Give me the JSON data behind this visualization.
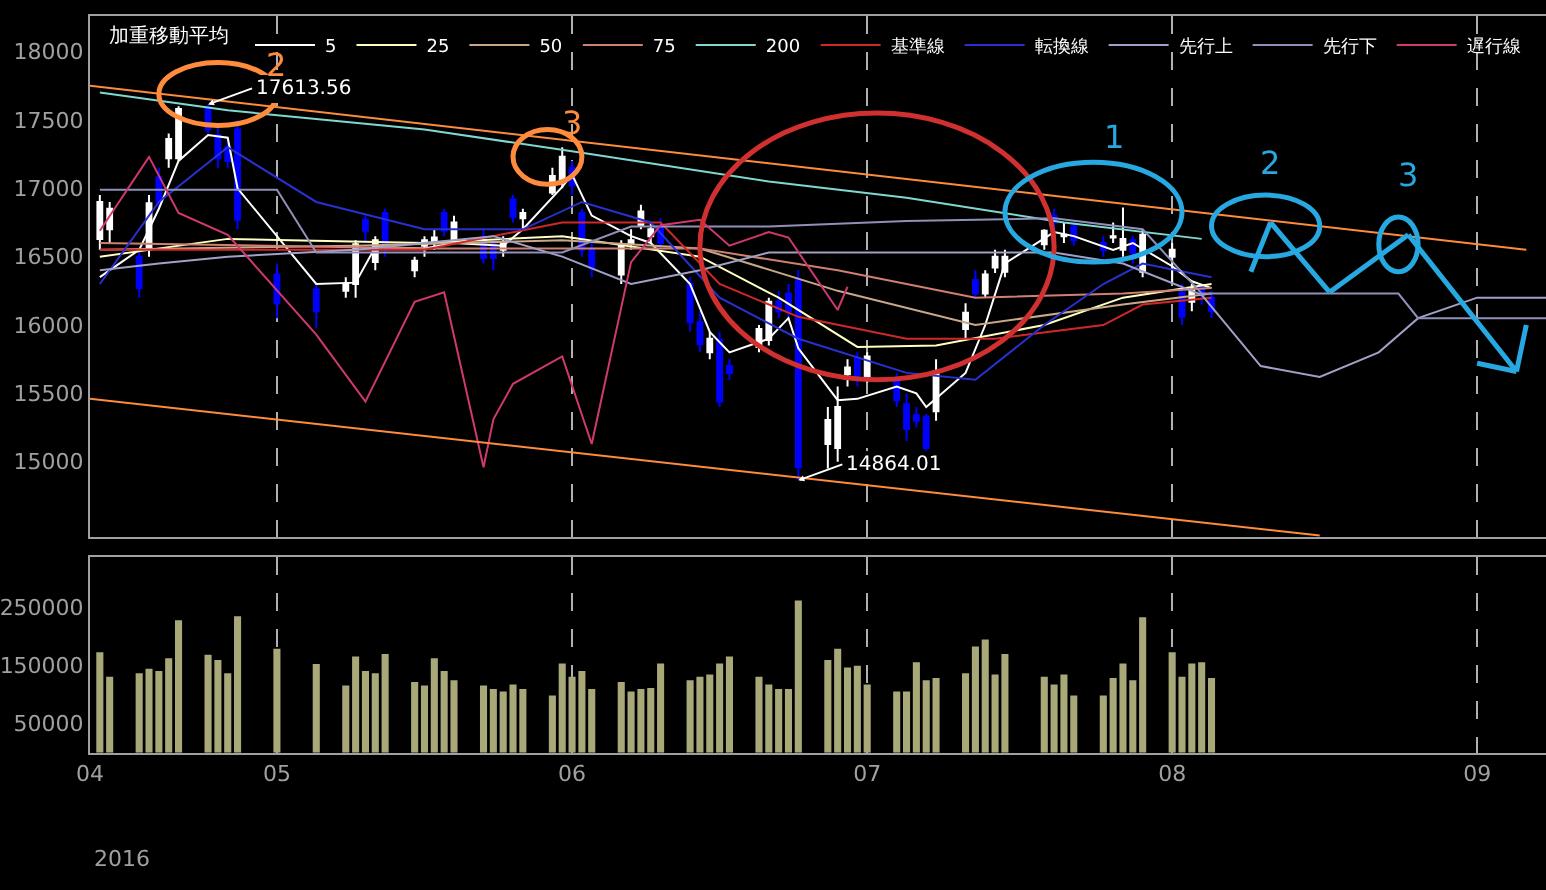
{
  "chart_data": [
    {
      "type": "candlestick",
      "legend_title": "加重移動平均",
      "legend": "top",
      "grid": "x",
      "tick_labels": "y",
      "xlim": [
        "2016-04-13",
        "2016-09-08"
      ],
      "xticks": [
        {
          "value": "2016-04-13",
          "label": null
        },
        {
          "value": "2016-05-02",
          "label": null
        },
        {
          "value": "2016-06-01",
          "label": null
        },
        {
          "value": "2016-07-01",
          "label": null
        },
        {
          "value": "2016-08-01",
          "label": null
        },
        {
          "value": "2016-09-01",
          "label": null
        }
      ],
      "ylim": [
        14450,
        18260
      ],
      "yticks": [
        15000,
        15500,
        16000,
        16500,
        17000,
        17500,
        18000
      ],
      "series": [
        {
          "type": "candlestick",
          "color": "#ffffff",
          "x": [
            "2016-04-14",
            "2016-04-15",
            "2016-04-19",
            "2016-04-21",
            "2016-04-22",
            "2016-05-09",
            "2016-05-10",
            "2016-05-12",
            "2016-05-16",
            "2016-05-17",
            "2016-05-18",
            "2016-05-20",
            "2016-05-25",
            "2016-05-27",
            "2016-05-30",
            "2016-05-31",
            "2016-06-06",
            "2016-06-07",
            "2016-06-08",
            "2016-06-09",
            "2016-06-15",
            "2016-06-20",
            "2016-06-21",
            "2016-06-27",
            "2016-06-28",
            "2016-06-29",
            "2016-07-01",
            "2016-07-08",
            "2016-07-11",
            "2016-07-13",
            "2016-07-14",
            "2016-07-15",
            "2016-07-19",
            "2016-07-21",
            "2016-07-26",
            "2016-07-27",
            "2016-07-29",
            "2016-08-01",
            "2016-08-03"
          ],
          "ohlc": [
            [
              16630,
              16950,
              16550,
              16900
            ],
            [
              16700,
              16900,
              16600,
              16850
            ],
            [
              16570,
              16950,
              16500,
              16890
            ],
            [
              17220,
              17400,
              17150,
              17360
            ],
            [
              17220,
              17600,
              17200,
              17580
            ],
            [
              16250,
              16350,
              16200,
              16300
            ],
            [
              16300,
              16620,
              16200,
              16590
            ],
            [
              16460,
              16650,
              16400,
              16620
            ],
            [
              16400,
              16500,
              16350,
              16470
            ],
            [
              16580,
              16650,
              16500,
              16620
            ],
            [
              16600,
              16700,
              16550,
              16640
            ],
            [
              16630,
              16800,
              16600,
              16750
            ],
            [
              16550,
              16650,
              16500,
              16600
            ],
            [
              16780,
              16850,
              16700,
              16820
            ],
            [
              16970,
              17150,
              16950,
              17090
            ],
            [
              17060,
              17300,
              17000,
              17230
            ],
            [
              16370,
              16620,
              16300,
              16590
            ],
            [
              16600,
              16700,
              16550,
              16620
            ],
            [
              16730,
              16880,
              16700,
              16830
            ],
            [
              16650,
              16750,
              16600,
              16700
            ],
            [
              15800,
              15950,
              15750,
              15900
            ],
            [
              15840,
              16000,
              15800,
              15970
            ],
            [
              15890,
              16200,
              15850,
              16170
            ],
            [
              15130,
              15400,
              14950,
              15305
            ],
            [
              15100,
              15550,
              15000,
              15400
            ],
            [
              15640,
              15750,
              15550,
              15690
            ],
            [
              15620,
              15800,
              15580,
              15770
            ],
            [
              15370,
              15750,
              15300,
              15660
            ],
            [
              15970,
              16160,
              15900,
              16090
            ],
            [
              16230,
              16400,
              16200,
              16370
            ],
            [
              16420,
              16550,
              16380,
              16500
            ],
            [
              16390,
              16550,
              16350,
              16500
            ],
            [
              16590,
              16700,
              16550,
              16690
            ],
            [
              16650,
              16750,
              16600,
              16660
            ],
            [
              16640,
              16750,
              16600,
              16650
            ],
            [
              16550,
              16860,
              16500,
              16630
            ],
            [
              16390,
              16700,
              16350,
              16660
            ],
            [
              16500,
              16600,
              16300,
              16550
            ],
            [
              16170,
              16300,
              16100,
              16260
            ]
          ]
        },
        {
          "type": "candlestick",
          "color": "#0000ff",
          "x": [
            "2016-04-18",
            "2016-04-20",
            "2016-04-25",
            "2016-04-26",
            "2016-04-27",
            "2016-04-28",
            "2016-05-02",
            "2016-05-06",
            "2016-05-11",
            "2016-05-13",
            "2016-05-19",
            "2016-05-23",
            "2016-05-24",
            "2016-05-26",
            "2016-06-01",
            "2016-06-02",
            "2016-06-03",
            "2016-06-10",
            "2016-06-13",
            "2016-06-14",
            "2016-06-16",
            "2016-06-17",
            "2016-06-22",
            "2016-06-23",
            "2016-06-24",
            "2016-06-30",
            "2016-07-04",
            "2016-07-05",
            "2016-07-06",
            "2016-07-07",
            "2016-07-12",
            "2016-07-20",
            "2016-07-22",
            "2016-07-25",
            "2016-07-28",
            "2016-08-02",
            "2016-08-04",
            "2016-08-05"
          ],
          "ohlc": [
            [
              16500,
              16550,
              16200,
              16270
            ],
            [
              17080,
              17150,
              16850,
              16900
            ],
            [
              17590,
              17613.56,
              17400,
              17430
            ],
            [
              17390,
              17450,
              17150,
              17220
            ],
            [
              17300,
              17350,
              17150,
              17200
            ],
            [
              17430,
              17500,
              16700,
              16770
            ],
            [
              16370,
              16450,
              16050,
              16160
            ],
            [
              16260,
              16300,
              15980,
              16100
            ],
            [
              16770,
              16800,
              16600,
              16690
            ],
            [
              16820,
              16850,
              16500,
              16550
            ],
            [
              16820,
              16850,
              16650,
              16690
            ],
            [
              16640,
              16700,
              16450,
              16490
            ],
            [
              16590,
              16620,
              16400,
              16490
            ],
            [
              16920,
              16950,
              16750,
              16790
            ],
            [
              17150,
              17200,
              16950,
              17020
            ],
            [
              16820,
              16850,
              16500,
              16550
            ],
            [
              16550,
              16600,
              16350,
              16420
            ],
            [
              16720,
              16780,
              16550,
              16600
            ],
            [
              16300,
              16350,
              15950,
              16020
            ],
            [
              16020,
              16100,
              15800,
              15860
            ],
            [
              15890,
              15950,
              15400,
              15440
            ],
            [
              15700,
              15750,
              15600,
              15650
            ],
            [
              16170,
              16250,
              16050,
              16100
            ],
            [
              16230,
              16300,
              16050,
              16100
            ],
            [
              16330,
              16400,
              14864.01,
              14960
            ],
            [
              15760,
              15800,
              15550,
              15620
            ],
            [
              15600,
              15650,
              15400,
              15450
            ],
            [
              15420,
              15500,
              15150,
              15240
            ],
            [
              15340,
              15400,
              15250,
              15300
            ],
            [
              15330,
              15350,
              15080,
              15100
            ],
            [
              16330,
              16400,
              16200,
              16230
            ],
            [
              16800,
              16850,
              16700,
              16750
            ],
            [
              16720,
              16750,
              16580,
              16620
            ],
            [
              16600,
              16650,
              16500,
              16550
            ],
            [
              16620,
              16650,
              16450,
              16530
            ],
            [
              16240,
              16300,
              16000,
              16060
            ],
            [
              16270,
              16300,
              16150,
              16220
            ],
            [
              16200,
              16250,
              16050,
              16100
            ]
          ]
        },
        {
          "type": "line",
          "name": "5",
          "color": "#ffffff",
          "x": [
            "2016-04-14",
            "2016-04-18",
            "2016-04-20",
            "2016-04-22",
            "2016-04-25",
            "2016-04-27",
            "2016-04-28",
            "2016-05-06",
            "2016-05-10",
            "2016-05-12",
            "2016-05-17",
            "2016-05-20",
            "2016-05-25",
            "2016-05-27",
            "2016-05-31",
            "2016-06-01",
            "2016-06-03",
            "2016-06-07",
            "2016-06-09",
            "2016-06-13",
            "2016-06-15",
            "2016-06-17",
            "2016-06-21",
            "2016-06-23",
            "2016-06-24",
            "2016-06-28",
            "2016-06-30",
            "2016-07-04",
            "2016-07-06",
            "2016-07-07",
            "2016-07-11",
            "2016-07-13",
            "2016-07-15",
            "2016-07-20",
            "2016-07-22",
            "2016-07-26",
            "2016-07-28",
            "2016-08-01",
            "2016-08-03",
            "2016-08-05"
          ],
          "values": [
            16350,
            16550,
            16850,
            17200,
            17390,
            17370,
            17000,
            16300,
            16310,
            16570,
            16560,
            16600,
            16580,
            16700,
            17010,
            17100,
            16800,
            16650,
            16600,
            16300,
            15950,
            15800,
            15900,
            16050,
            15830,
            15450,
            15460,
            15550,
            15500,
            15400,
            15650,
            16000,
            16450,
            16680,
            16650,
            16550,
            16600,
            16430,
            16320,
            16270
          ]
        },
        {
          "type": "line",
          "name": "25",
          "color": "#ffffc0",
          "x": [
            "2016-04-14",
            "2016-04-27",
            "2016-05-17",
            "2016-05-31",
            "2016-06-14",
            "2016-06-22",
            "2016-06-30",
            "2016-07-08",
            "2016-07-19",
            "2016-07-27",
            "2016-08-05"
          ],
          "values": [
            16500,
            16630,
            16600,
            16650,
            16500,
            16200,
            15840,
            15850,
            16000,
            16200,
            16300
          ]
        },
        {
          "type": "line",
          "name": "50",
          "color": "#c8a888",
          "x": [
            "2016-04-14",
            "2016-05-10",
            "2016-05-31",
            "2016-06-14",
            "2016-06-28",
            "2016-07-12",
            "2016-07-27",
            "2016-08-05"
          ],
          "values": [
            16550,
            16580,
            16620,
            16560,
            16250,
            16000,
            16150,
            16230
          ]
        },
        {
          "type": "line",
          "name": "75",
          "color": "#d08070",
          "x": [
            "2016-04-14",
            "2016-05-17",
            "2016-06-14",
            "2016-06-28",
            "2016-07-12",
            "2016-07-27",
            "2016-08-05"
          ],
          "values": [
            16600,
            16560,
            16560,
            16400,
            16200,
            16230,
            16270
          ]
        },
        {
          "type": "line",
          "name": "200",
          "color": "#80d8d0",
          "x": [
            "2016-04-14",
            "2016-04-27",
            "2016-05-17",
            "2016-06-02",
            "2016-06-21",
            "2016-07-05",
            "2016-07-21",
            "2016-08-04"
          ],
          "values": [
            17700,
            17570,
            17430,
            17260,
            17050,
            16930,
            16750,
            16630
          ]
        },
        {
          "type": "line",
          "name": "基準線",
          "color": "#d02828",
          "x": [
            "2016-04-14",
            "2016-05-17",
            "2016-05-31",
            "2016-06-10",
            "2016-06-16",
            "2016-06-24",
            "2016-07-05",
            "2016-07-14",
            "2016-07-25",
            "2016-07-29",
            "2016-08-05"
          ],
          "values": [
            16550,
            16550,
            16750,
            16750,
            16300,
            16060,
            15900,
            15900,
            16000,
            16150,
            16200
          ]
        },
        {
          "type": "line",
          "name": "転換線",
          "color": "#2830d0",
          "x": [
            "2016-04-14",
            "2016-04-20",
            "2016-04-27",
            "2016-05-06",
            "2016-05-17",
            "2016-05-27",
            "2016-06-02",
            "2016-06-09",
            "2016-06-16",
            "2016-06-24",
            "2016-07-05",
            "2016-07-12",
            "2016-07-19",
            "2016-07-25",
            "2016-07-29",
            "2016-08-05"
          ],
          "values": [
            16300,
            16900,
            17300,
            16900,
            16700,
            16700,
            16900,
            16750,
            16200,
            15900,
            15650,
            15600,
            16000,
            16300,
            16450,
            16350
          ]
        },
        {
          "type": "line",
          "name": "先行上",
          "color": "#a0a0c8",
          "x": [
            "2016-04-14",
            "2016-04-20",
            "2016-04-27",
            "2016-05-10",
            "2016-05-17",
            "2016-05-24",
            "2016-05-31",
            "2016-06-07",
            "2016-06-14",
            "2016-06-21",
            "2016-06-28",
            "2016-07-05",
            "2016-07-12",
            "2016-07-20",
            "2016-07-27",
            "2016-08-04",
            "2016-08-10",
            "2016-08-16",
            "2016-08-22",
            "2016-08-26",
            "2016-09-01",
            "2016-09-08"
          ],
          "values": [
            16400,
            16450,
            16500,
            16550,
            16600,
            16650,
            16500,
            16300,
            16400,
            16530,
            16530,
            16530,
            16530,
            16530,
            16450,
            16220,
            15700,
            15620,
            15800,
            16050,
            16200,
            16200
          ]
        },
        {
          "type": "line",
          "name": "先行下",
          "color": "#9090b8",
          "x": [
            "2016-04-14",
            "2016-05-02",
            "2016-05-06",
            "2016-05-17",
            "2016-05-31",
            "2016-06-07",
            "2016-06-21",
            "2016-07-05",
            "2016-07-20",
            "2016-07-29",
            "2016-08-04",
            "2016-08-24",
            "2016-08-26",
            "2016-09-08"
          ],
          "values": [
            16990,
            16990,
            16530,
            16530,
            16530,
            16720,
            16720,
            16760,
            16780,
            16700,
            16230,
            16230,
            16050,
            16050
          ]
        },
        {
          "type": "line",
          "name": "遅行線",
          "color": "#d03870",
          "x": [
            "2016-04-14",
            "2016-04-19",
            "2016-04-22",
            "2016-04-27",
            "2016-05-06",
            "2016-05-11",
            "2016-05-16",
            "2016-05-19",
            "2016-05-23",
            "2016-05-24",
            "2016-05-26",
            "2016-05-31",
            "2016-06-03",
            "2016-06-07",
            "2016-06-10",
            "2016-06-14",
            "2016-06-17",
            "2016-06-21",
            "2016-06-23",
            "2016-06-28",
            "2016-06-29"
          ],
          "values": [
            16690,
            17230,
            16820,
            16660,
            15930,
            15440,
            16170,
            16240,
            14960,
            15310,
            15570,
            15770,
            15130,
            16460,
            16730,
            16770,
            16580,
            16680,
            16640,
            16110,
            16280
          ]
        },
        {
          "type": "line",
          "color": "#ff8c3c",
          "x": [
            "2016-04-13",
            "2016-09-06"
          ],
          "values": [
            17750,
            16550
          ]
        },
        {
          "type": "line",
          "color": "#ff8c3c",
          "x": [
            "2016-04-13",
            "2016-08-16"
          ],
          "values": [
            15460,
            14460
          ]
        }
      ],
      "annotations": [
        {
          "text": "17613.56",
          "x": "2016-04-25",
          "y": 17613.56
        },
        {
          "text": "14864.01",
          "x": "2016-06-24",
          "y": 14864.01
        },
        "2",
        "3",
        "1",
        {
          "text": "2",
          "x": "2016-08-11",
          "y": 16750
        },
        {
          "text": "3",
          "x": "2016-08-25",
          "y": 16660
        }
      ]
    },
    {
      "type": "bar",
      "grid": "x",
      "color": "#a8a878",
      "xlim": [
        "2016-04-13",
        "2016-09-08"
      ],
      "xticks": [
        {
          "value": "2016-04-13",
          "label": "04"
        },
        {
          "value": "2016-05-02",
          "label": "05"
        },
        {
          "value": "2016-06-01",
          "label": "06"
        },
        {
          "value": "2016-07-01",
          "label": "07"
        },
        {
          "value": "2016-08-01",
          "label": "08"
        },
        {
          "value": "2016-09-01",
          "label": "09"
        }
      ],
      "ylim": [
        0,
        335000
      ],
      "yticks": [
        50000,
        150000,
        250000
      ],
      "x": [
        "2016-04-14",
        "2016-04-15",
        "2016-04-18",
        "2016-04-19",
        "2016-04-20",
        "2016-04-21",
        "2016-04-22",
        "2016-04-25",
        "2016-04-26",
        "2016-04-27",
        "2016-04-28",
        "2016-05-02",
        "2016-05-06",
        "2016-05-09",
        "2016-05-10",
        "2016-05-11",
        "2016-05-12",
        "2016-05-13",
        "2016-05-16",
        "2016-05-17",
        "2016-05-18",
        "2016-05-19",
        "2016-05-20",
        "2016-05-23",
        "2016-05-24",
        "2016-05-25",
        "2016-05-26",
        "2016-05-27",
        "2016-05-30",
        "2016-05-31",
        "2016-06-01",
        "2016-06-02",
        "2016-06-03",
        "2016-06-06",
        "2016-06-07",
        "2016-06-08",
        "2016-06-09",
        "2016-06-10",
        "2016-06-13",
        "2016-06-14",
        "2016-06-15",
        "2016-06-16",
        "2016-06-17",
        "2016-06-20",
        "2016-06-21",
        "2016-06-22",
        "2016-06-23",
        "2016-06-24",
        "2016-06-27",
        "2016-06-28",
        "2016-06-29",
        "2016-06-30",
        "2016-07-01",
        "2016-07-04",
        "2016-07-05",
        "2016-07-06",
        "2016-07-07",
        "2016-07-08",
        "2016-07-11",
        "2016-07-12",
        "2016-07-13",
        "2016-07-14",
        "2016-07-15",
        "2016-07-19",
        "2016-07-20",
        "2016-07-21",
        "2016-07-22",
        "2016-07-25",
        "2016-07-26",
        "2016-07-27",
        "2016-07-28",
        "2016-07-29",
        "2016-08-01",
        "2016-08-02",
        "2016-08-03",
        "2016-08-04",
        "2016-08-05"
      ],
      "values": [
        172000,
        130000,
        136000,
        144000,
        140000,
        162000,
        227000,
        168000,
        159000,
        136000,
        234000,
        178000,
        152000,
        115000,
        165000,
        140000,
        136000,
        169000,
        121000,
        115000,
        162000,
        140000,
        124000,
        115000,
        109000,
        105000,
        117000,
        109000,
        98000,
        153000,
        130000,
        140000,
        109000,
        121000,
        105000,
        109000,
        111000,
        153000,
        124000,
        130000,
        134000,
        153000,
        165000,
        130000,
        117000,
        109000,
        109000,
        261000,
        159000,
        178000,
        146000,
        149000,
        117000,
        105000,
        105000,
        155000,
        124000,
        128000,
        136000,
        182000,
        194000,
        134000,
        169000,
        130000,
        117000,
        134000,
        98000,
        98000,
        128000,
        153000,
        124000,
        232000,
        172000,
        130000,
        153000,
        155000,
        128000
      ],
      "annotations": [
        "2016"
      ]
    }
  ]
}
